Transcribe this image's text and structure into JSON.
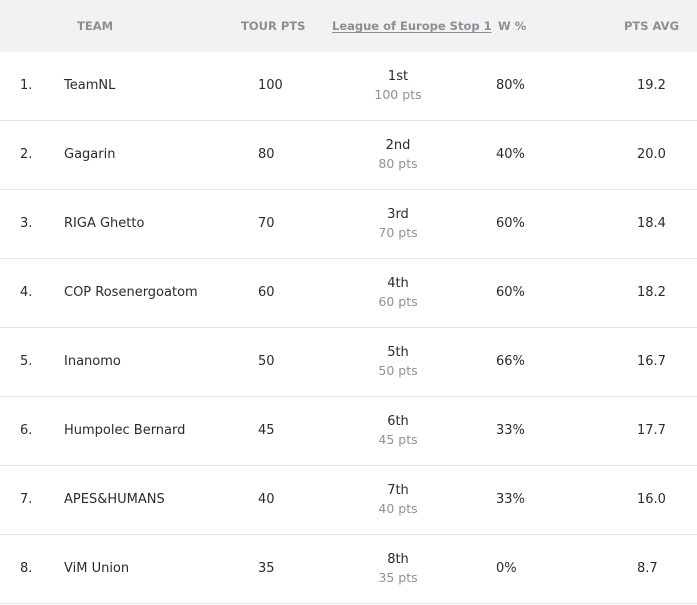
{
  "header": {
    "team": "TEAM",
    "tour_pts": "TOUR PTS",
    "stop": "League of Europe Stop 1",
    "win_pct": "W %",
    "pts_avg": "PTS AVG"
  },
  "rows": [
    {
      "rank": "1.",
      "team": "TeamNL",
      "tour_pts": "100",
      "place": "1st",
      "stop_pts": "100 pts",
      "win_pct": "80%",
      "pts_avg": "19.2"
    },
    {
      "rank": "2.",
      "team": "Gagarin",
      "tour_pts": "80",
      "place": "2nd",
      "stop_pts": "80 pts",
      "win_pct": "40%",
      "pts_avg": "20.0"
    },
    {
      "rank": "3.",
      "team": "RIGA Ghetto",
      "tour_pts": "70",
      "place": "3rd",
      "stop_pts": "70 pts",
      "win_pct": "60%",
      "pts_avg": "18.4"
    },
    {
      "rank": "4.",
      "team": "COP Rosenergoatom",
      "tour_pts": "60",
      "place": "4th",
      "stop_pts": "60 pts",
      "win_pct": "60%",
      "pts_avg": "18.2"
    },
    {
      "rank": "5.",
      "team": "Inanomo",
      "tour_pts": "50",
      "place": "5th",
      "stop_pts": "50 pts",
      "win_pct": "66%",
      "pts_avg": "16.7"
    },
    {
      "rank": "6.",
      "team": "Humpolec Bernard",
      "tour_pts": "45",
      "place": "6th",
      "stop_pts": "45 pts",
      "win_pct": "33%",
      "pts_avg": "17.7"
    },
    {
      "rank": "7.",
      "team": "APES&HUMANS",
      "tour_pts": "40",
      "place": "7th",
      "stop_pts": "40 pts",
      "win_pct": "33%",
      "pts_avg": "16.0"
    },
    {
      "rank": "8.",
      "team": "ViM Union",
      "tour_pts": "35",
      "place": "8th",
      "stop_pts": "35 pts",
      "win_pct": "0%",
      "pts_avg": "8.7"
    }
  ]
}
